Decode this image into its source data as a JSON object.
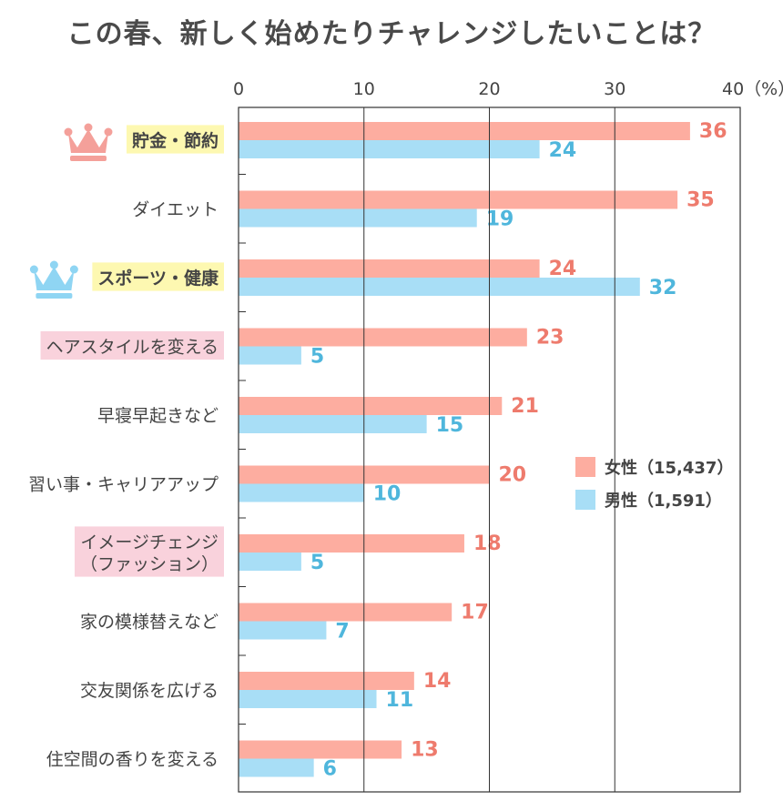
{
  "title": "この春、新しく始めたりチャレンジしたいことは？",
  "colors": {
    "female": "#fdada0",
    "male": "#a8def6",
    "female_text": "#ee7b6d",
    "male_text": "#4fb6dc",
    "highlight_yellow": "#fdf8b1",
    "highlight_pink": "#f9d2dc",
    "crown_pink": "#f4a09a",
    "crown_blue": "#8fd5f3",
    "grid": "#333333"
  },
  "chart_data": {
    "type": "bar",
    "orientation": "horizontal",
    "xlim": [
      0,
      40
    ],
    "x_ticks": [
      "0",
      "10",
      "20",
      "30",
      "40（%）"
    ],
    "grid": true,
    "legend_position": "right",
    "categories": [
      "貯金・節約",
      "ダイエット",
      "スポーツ・健康",
      "ヘアスタイルを変える",
      "早寝早起きなど",
      "習い事・キャリアアップ",
      "イメージチェンジ （ファッション）",
      "家の模様替えなど",
      "交友関係を広げる",
      "住空間の香りを変える"
    ],
    "category_highlight": [
      "yellow",
      "none",
      "yellow",
      "pink",
      "none",
      "none",
      "pink",
      "none",
      "none",
      "none"
    ],
    "category_crown": [
      "pink-crown-icon",
      "",
      "blue-crown-icon",
      "",
      "",
      "",
      "",
      "",
      "",
      ""
    ],
    "series": [
      {
        "name": "女性（15,437）",
        "values": [
          36,
          35,
          24,
          23,
          21,
          20,
          18,
          17,
          14,
          13
        ]
      },
      {
        "name": "男性（1,591）",
        "values": [
          24,
          19,
          32,
          5,
          15,
          10,
          5,
          7,
          11,
          6
        ]
      }
    ]
  }
}
